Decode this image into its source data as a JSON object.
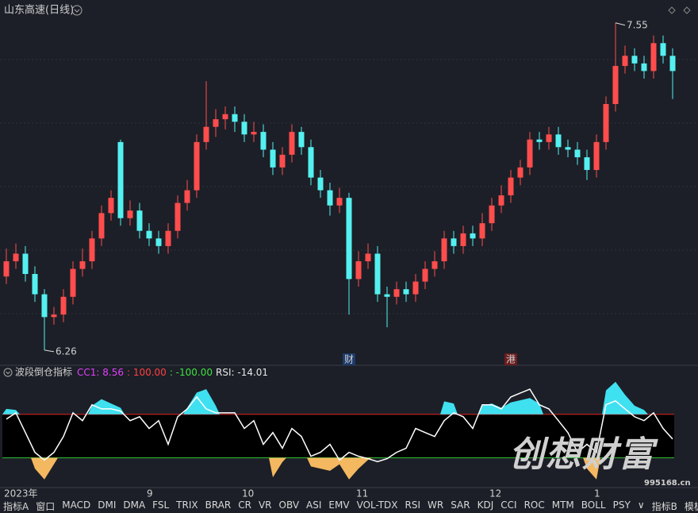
{
  "chart_data": [
    {
      "type": "candlestick",
      "title": "山东高速(日线)",
      "categories": [
        "2023年",
        null,
        null,
        null,
        null,
        null,
        null,
        null,
        null,
        null,
        null,
        null,
        null,
        null,
        null,
        "9",
        null,
        null,
        null,
        null,
        null,
        null,
        null,
        null,
        null,
        "10",
        null,
        null,
        null,
        null,
        null,
        null,
        null,
        null,
        null,
        null,
        null,
        "11",
        null,
        null,
        null,
        null,
        null,
        null,
        null,
        null,
        null,
        null,
        null,
        null,
        null,
        "12",
        null,
        null,
        null,
        null,
        null,
        null,
        null,
        null,
        null,
        null,
        "1",
        null,
        null,
        null,
        null,
        null,
        null,
        null,
        null
      ],
      "open": [
        6.55,
        6.61,
        6.64,
        6.56,
        6.48,
        6.39,
        6.4,
        6.47,
        6.58,
        6.61,
        6.7,
        6.8,
        7.08,
        6.78,
        6.81,
        6.73,
        6.7,
        6.67,
        6.73,
        6.84,
        6.89,
        7.08,
        7.14,
        7.17,
        7.19,
        7.16,
        7.11,
        7.12,
        7.05,
        6.98,
        7.03,
        7.12,
        7.06,
        6.94,
        6.89,
        6.83,
        6.86,
        6.54,
        6.61,
        6.64,
        6.48,
        6.47,
        6.5,
        6.48,
        6.53,
        6.58,
        6.61,
        6.7,
        6.67,
        6.72,
        6.7,
        6.76,
        6.83,
        6.87,
        6.94,
        6.98,
        7.09,
        7.08,
        7.11,
        7.06,
        7.05,
        7.02,
        6.97,
        7.08,
        7.23,
        7.38,
        7.42,
        7.39,
        7.36,
        7.47,
        7.42
      ],
      "high": [
        6.66,
        6.68,
        6.67,
        6.59,
        6.5,
        6.43,
        6.5,
        6.61,
        6.66,
        6.73,
        6.83,
        6.89,
        7.09,
        6.85,
        6.84,
        6.76,
        6.73,
        6.76,
        6.87,
        6.93,
        7.11,
        7.32,
        7.21,
        7.22,
        7.22,
        7.19,
        7.16,
        7.15,
        7.08,
        7.06,
        7.15,
        7.14,
        7.09,
        6.97,
        6.92,
        6.9,
        6.88,
        6.65,
        6.68,
        6.67,
        6.51,
        6.53,
        6.53,
        6.56,
        6.61,
        6.65,
        6.73,
        6.73,
        6.75,
        6.75,
        6.8,
        6.86,
        6.91,
        6.97,
        7.01,
        7.12,
        7.12,
        7.14,
        7.14,
        7.09,
        7.08,
        7.05,
        7.11,
        7.26,
        7.55,
        7.46,
        7.45,
        7.42,
        7.5,
        7.5,
        7.45
      ],
      "low": [
        6.52,
        6.58,
        6.53,
        6.45,
        6.26,
        6.36,
        6.37,
        6.44,
        6.55,
        6.58,
        6.67,
        6.77,
        6.75,
        6.75,
        6.7,
        6.67,
        6.64,
        6.64,
        6.7,
        6.81,
        6.86,
        7.05,
        7.1,
        7.13,
        7.12,
        7.08,
        7.08,
        7.02,
        6.95,
        6.95,
        7.0,
        7.03,
        6.91,
        6.86,
        6.79,
        6.8,
        6.4,
        6.51,
        6.58,
        6.45,
        6.35,
        6.44,
        6.45,
        6.45,
        6.5,
        6.55,
        6.58,
        6.64,
        6.64,
        6.67,
        6.67,
        6.73,
        6.8,
        6.84,
        6.91,
        6.95,
        7.05,
        7.05,
        7.03,
        7.02,
        6.99,
        6.93,
        6.94,
        7.05,
        7.2,
        7.35,
        7.36,
        7.33,
        7.33,
        7.39,
        7.25
      ],
      "close": [
        6.61,
        6.64,
        6.56,
        6.48,
        6.39,
        6.4,
        6.47,
        6.58,
        6.61,
        6.7,
        6.8,
        6.86,
        6.78,
        6.81,
        6.73,
        6.7,
        6.67,
        6.73,
        6.84,
        6.89,
        7.08,
        7.14,
        7.17,
        7.19,
        7.16,
        7.11,
        7.12,
        7.05,
        6.98,
        7.03,
        7.12,
        7.06,
        6.94,
        6.89,
        6.83,
        6.86,
        6.54,
        6.61,
        6.64,
        6.48,
        6.47,
        6.5,
        6.48,
        6.53,
        6.58,
        6.61,
        6.7,
        6.67,
        6.72,
        6.7,
        6.76,
        6.83,
        6.87,
        6.94,
        6.98,
        7.09,
        7.08,
        7.11,
        7.06,
        7.05,
        7.02,
        6.97,
        7.08,
        7.23,
        7.38,
        7.42,
        7.39,
        7.36,
        7.47,
        7.42,
        7.36
      ],
      "event_labels": [
        null,
        null,
        null,
        null,
        null,
        null,
        null,
        null,
        null,
        null,
        null,
        null,
        null,
        null,
        null,
        null,
        null,
        null,
        null,
        null,
        null,
        null,
        null,
        null,
        null,
        null,
        null,
        null,
        null,
        null,
        null,
        null,
        null,
        null,
        null,
        null,
        "财",
        null,
        null,
        null,
        null,
        null,
        null,
        null,
        null,
        null,
        null,
        null,
        null,
        null,
        null,
        null,
        null,
        "港",
        null,
        null,
        null,
        null,
        null,
        null,
        null,
        null,
        null,
        null,
        null,
        null,
        null,
        null,
        null,
        null,
        null
      ],
      "up_color": "#ff4d4d",
      "down_color": "#54f0f0",
      "ylim": [
        6.2,
        7.64
      ]
    },
    {
      "type": "line",
      "title": "波段倒仓指标",
      "legend": [
        {
          "text": "CC1: 8.56",
          "color": "#e040fb"
        },
        {
          "text": ": 100.00",
          "color": "#ff4040"
        },
        {
          "text": ": -100.00",
          "color": "#40e040"
        },
        {
          "text": "RSI: -14.01",
          "color": "#e8e8e8"
        }
      ],
      "levels": [
        100,
        -100
      ],
      "level_colors": [
        "#e02020",
        "#30c030"
      ],
      "series": [
        {
          "name": "RSI",
          "color": "#ffffff",
          "values": [
            78,
            107,
            16,
            -75,
            -111,
            -75,
            -2,
            107,
            71,
            144,
            125,
            125,
            115,
            71,
            89,
            35,
            71,
            -38,
            89,
            125,
            180,
            125,
            107,
            107,
            107,
            35,
            71,
            -38,
            16,
            -56,
            35,
            -2,
            -93,
            -75,
            -38,
            -111,
            -75,
            -93,
            -104,
            -118,
            -104,
            -75,
            -56,
            35,
            16,
            -2,
            71,
            107,
            89,
            35,
            144,
            144,
            125,
            180,
            198,
            216,
            144,
            125,
            71,
            16,
            -75,
            -38,
            -75,
            144,
            162,
            125,
            89,
            71,
            107,
            35,
            -14.01
          ]
        },
        {
          "name": "上穿",
          "color": "#3fe0f0",
          "values": [
            125,
            120,
            null,
            null,
            null,
            null,
            null,
            null,
            null,
            140,
            170,
            150,
            130,
            null,
            null,
            null,
            null,
            null,
            null,
            130,
            200,
            216,
            140,
            null,
            null,
            null,
            null,
            null,
            null,
            null,
            null,
            null,
            null,
            null,
            null,
            null,
            null,
            null,
            null,
            null,
            null,
            null,
            null,
            null,
            null,
            null,
            160,
            150,
            null,
            null,
            140,
            150,
            130,
            155,
            165,
            175,
            150,
            null,
            null,
            null,
            null,
            null,
            null,
            210,
            250,
            190,
            140,
            120,
            null,
            null,
            null
          ]
        },
        {
          "name": "下穿",
          "color": "#f4b860",
          "values": [
            null,
            null,
            null,
            -150,
            -200,
            -130,
            null,
            null,
            null,
            null,
            null,
            null,
            null,
            null,
            null,
            null,
            null,
            null,
            null,
            null,
            null,
            null,
            null,
            null,
            null,
            null,
            null,
            null,
            -190,
            -120,
            null,
            null,
            -140,
            -150,
            -160,
            -130,
            -200,
            -150,
            -110,
            null,
            null,
            null,
            null,
            null,
            null,
            null,
            null,
            null,
            null,
            null,
            null,
            null,
            null,
            null,
            null,
            null,
            null,
            null,
            null,
            null,
            null,
            -150,
            -200,
            null,
            null,
            null,
            null,
            null,
            null,
            null,
            null
          ]
        }
      ],
      "ylim": [
        -230,
        260
      ]
    }
  ],
  "tabs": [
    "指标A",
    "窗口",
    "MACD",
    "DMI",
    "DMA",
    "FSL",
    "TRIX",
    "BRAR",
    "CR",
    "VR",
    "OBV",
    "ASI",
    "EMV",
    "VOL-TDX",
    "RSI",
    "WR",
    "SAR",
    "KDJ",
    "CCI",
    "ROC",
    "MTM",
    "BOLL",
    "PSY",
    "∨",
    "指标B",
    "模板"
  ],
  "watermark": {
    "title": "创想财富",
    "site": "995168.cn"
  }
}
